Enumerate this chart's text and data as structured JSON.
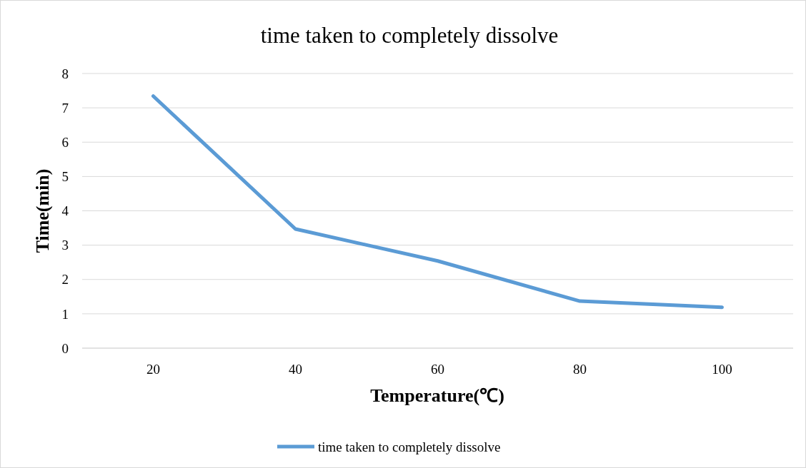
{
  "chart_data": {
    "type": "line",
    "title": "time taken to completely dissolve",
    "xlabel": "Temperature(℃)",
    "ylabel": "Time(min)",
    "categories": [
      "20",
      "40",
      "60",
      "80",
      "100"
    ],
    "series": [
      {
        "name": "time taken to completely dissolve",
        "color": "#5b9bd5",
        "values": [
          7.34,
          3.47,
          2.54,
          1.37,
          1.19
        ]
      }
    ],
    "ylim": [
      0,
      8
    ],
    "yticks": [
      0,
      1,
      2,
      3,
      4,
      5,
      6,
      7,
      8
    ],
    "grid": "y",
    "legend": "bottom"
  }
}
